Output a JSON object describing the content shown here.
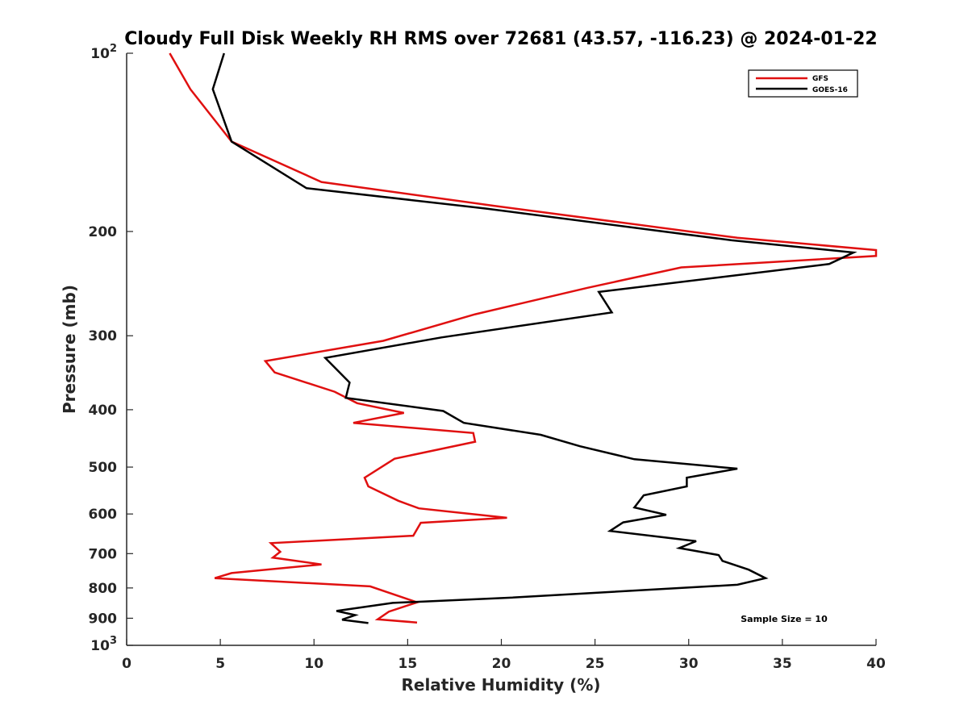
{
  "chart_data": {
    "type": "line",
    "title": "Cloudy Full Disk Weekly RH RMS over 72681 (43.57, -116.23) @ 2024-01-22",
    "xlabel": "Relative Humidity (%)",
    "ylabel": "Pressure (mb)",
    "xlim": [
      0,
      40
    ],
    "ylim": [
      100,
      1000
    ],
    "yscale": "log",
    "y_direction": "reversed",
    "grid": false,
    "legend_position": "top-right",
    "x_ticks": [
      "0",
      "5",
      "10",
      "15",
      "20",
      "25",
      "30",
      "35",
      "40"
    ],
    "y_ticks": [
      {
        "value": 100,
        "label": "10",
        "sup": "2"
      },
      {
        "value": 200,
        "label": "200"
      },
      {
        "value": 300,
        "label": "300"
      },
      {
        "value": 400,
        "label": "400"
      },
      {
        "value": 500,
        "label": "500"
      },
      {
        "value": 600,
        "label": "600"
      },
      {
        "value": 700,
        "label": "700"
      },
      {
        "value": 800,
        "label": "800"
      },
      {
        "value": 900,
        "label": "900"
      },
      {
        "value": 1000,
        "label": "10",
        "sup": "3"
      }
    ],
    "annotation": "Sample Size = 10",
    "series": [
      {
        "name": "GFS",
        "color": "#e01010",
        "x": [
          2.3,
          3.4,
          5.6,
          10.4,
          19.6,
          32.6,
          40.0,
          40.0,
          29.6,
          24.6,
          18.6,
          13.7,
          7.4,
          7.9,
          11.1,
          12.3,
          14.8,
          12.1,
          18.5,
          18.6,
          14.3,
          12.7,
          12.9,
          14.5,
          15.6,
          20.3,
          15.7,
          15.3,
          7.7,
          8.2,
          7.8,
          10.4,
          5.6,
          4.7,
          13.0,
          15.5,
          14.0,
          13.4,
          15.5
        ],
        "y": [
          100,
          115,
          141,
          165,
          181,
          205,
          215,
          220,
          230,
          249,
          276,
          306,
          331,
          346,
          373,
          390,
          405,
          421,
          438,
          453,
          484,
          521,
          539,
          570,
          587,
          609,
          621,
          653,
          672,
          695,
          711,
          730,
          755,
          770,
          795,
          846,
          877,
          904,
          915
        ]
      },
      {
        "name": "GOES-16",
        "color": "#000000",
        "x": [
          5.2,
          4.6,
          5.6,
          9.6,
          19.2,
          32.3,
          38.8,
          37.5,
          25.2,
          25.9,
          16.8,
          10.6,
          11.9,
          11.7,
          16.9,
          18.0,
          22.1,
          24.2,
          27.1,
          32.6,
          29.9,
          29.9,
          27.6,
          27.1,
          28.8,
          26.5,
          25.8,
          30.4,
          29.5,
          31.6,
          31.8,
          33.2,
          34.1,
          32.6,
          25.7,
          20.4,
          14.2,
          11.2,
          12.2,
          11.5,
          12.9
        ],
        "y": [
          100,
          115,
          141,
          169,
          183,
          207,
          217,
          227,
          253,
          274,
          302,
          327,
          360,
          382,
          402,
          421,
          441,
          461,
          485,
          503,
          521,
          539,
          558,
          585,
          602,
          620,
          641,
          667,
          685,
          704,
          720,
          745,
          770,
          790,
          813,
          831,
          848,
          875,
          889,
          905,
          917
        ]
      }
    ]
  }
}
